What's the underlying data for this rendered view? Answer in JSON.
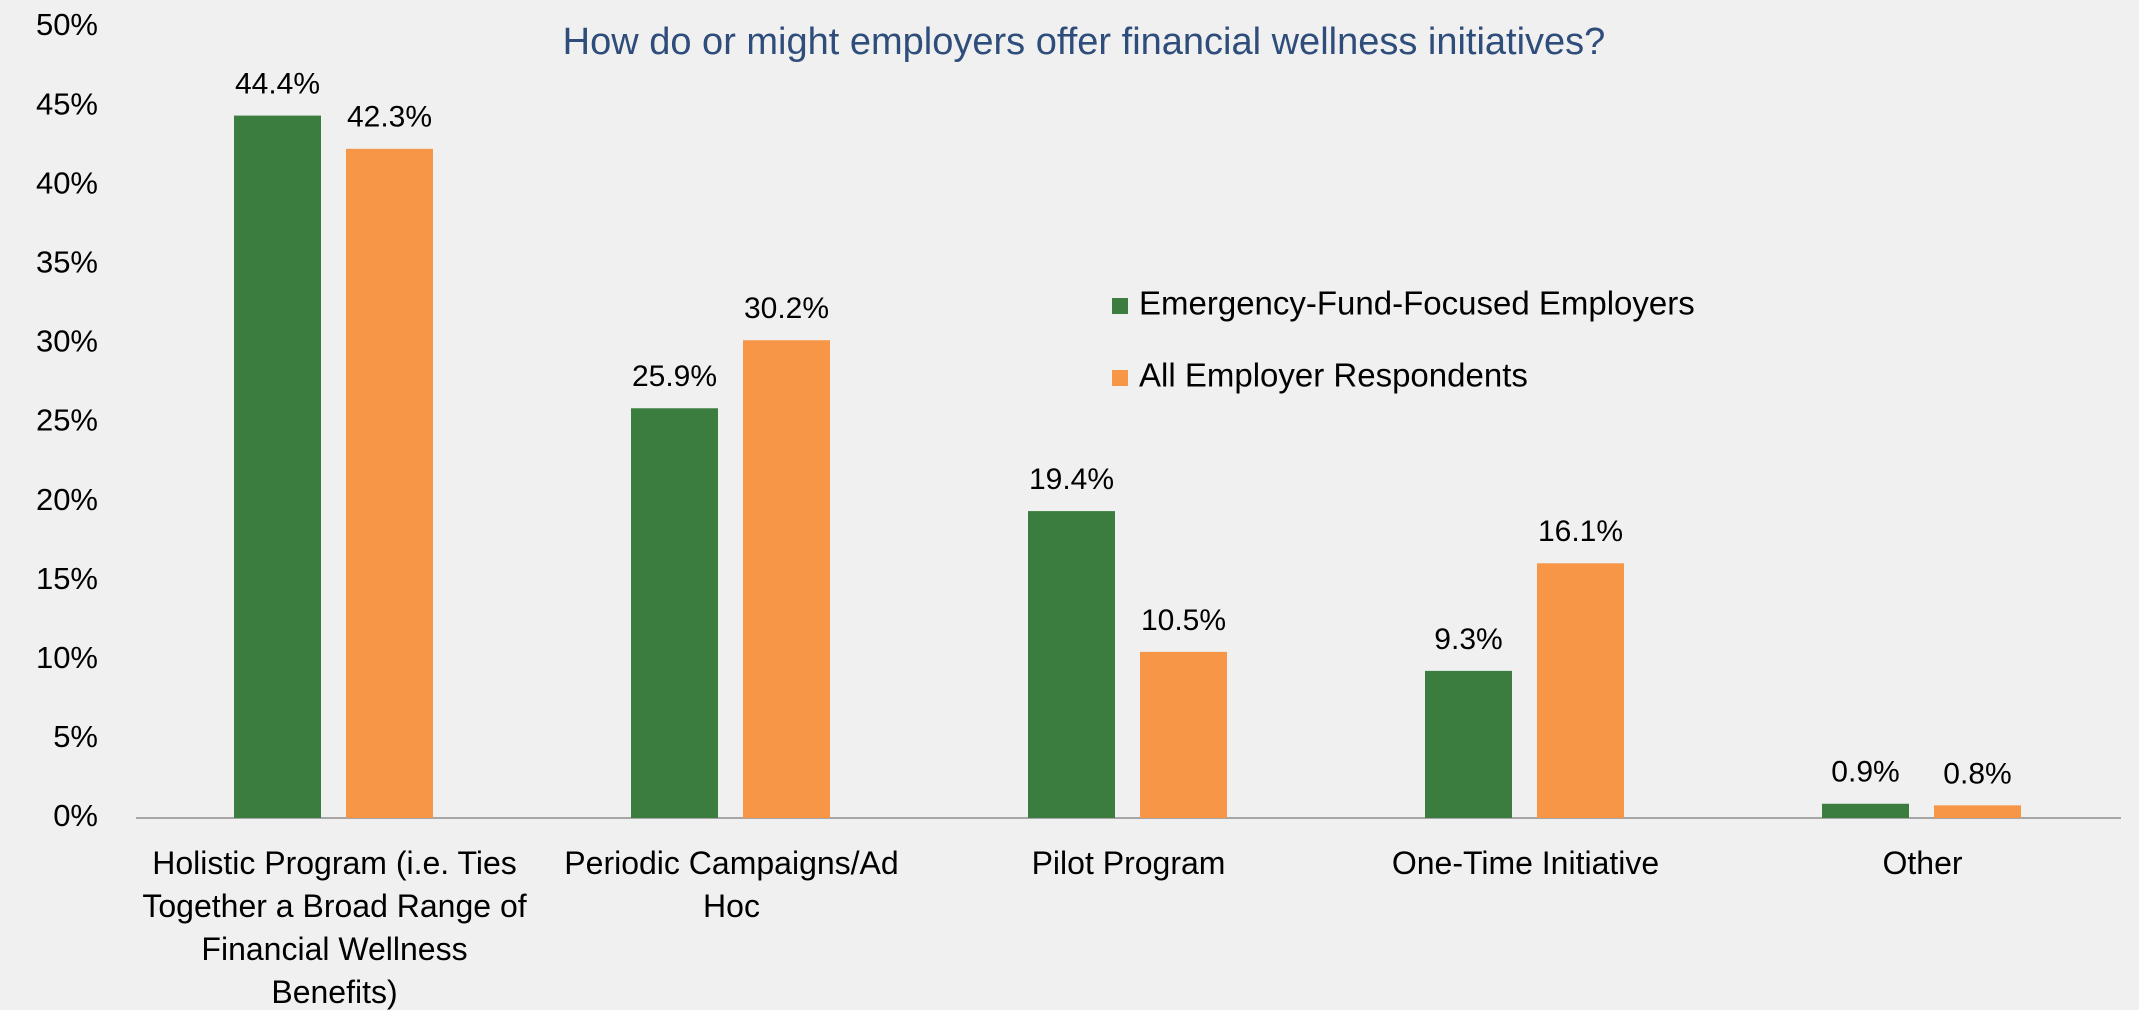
{
  "chart_data": {
    "type": "bar",
    "title": "How do or might employers offer financial wellness initiatives?",
    "categories": [
      "Holistic Program (i.e. Ties Together a Broad Range of Financial Wellness Benefits)",
      "Periodic Campaigns/Ad Hoc",
      "Pilot Program",
      "One-Time Initiative",
      "Other"
    ],
    "series": [
      {
        "name": "Emergency-Fund-Focused Employers",
        "color": "#3a7d3e",
        "values": [
          44.4,
          25.9,
          19.4,
          9.3,
          0.9
        ],
        "value_labels": [
          "44.4%",
          "25.9%",
          "19.4%",
          "9.3%",
          "0.9%"
        ]
      },
      {
        "name": "All Employer Respondents",
        "color": "#f79646",
        "values": [
          42.3,
          30.2,
          10.5,
          16.1,
          0.8
        ],
        "value_labels": [
          "42.3%",
          "30.2%",
          "10.5%",
          "16.1%",
          "0.8%"
        ]
      }
    ],
    "ylim": [
      0,
      50
    ],
    "yticks": [
      {
        "value": 0,
        "label": "0%"
      },
      {
        "value": 5,
        "label": "5%"
      },
      {
        "value": 10,
        "label": "10%"
      },
      {
        "value": 15,
        "label": "15%"
      },
      {
        "value": 20,
        "label": "20%"
      },
      {
        "value": 25,
        "label": "25%"
      },
      {
        "value": 30,
        "label": "30%"
      },
      {
        "value": 35,
        "label": "35%"
      },
      {
        "value": 40,
        "label": "40%"
      },
      {
        "value": 45,
        "label": "45%"
      },
      {
        "value": 50,
        "label": "50%"
      }
    ],
    "grid": false,
    "legend": "right"
  }
}
